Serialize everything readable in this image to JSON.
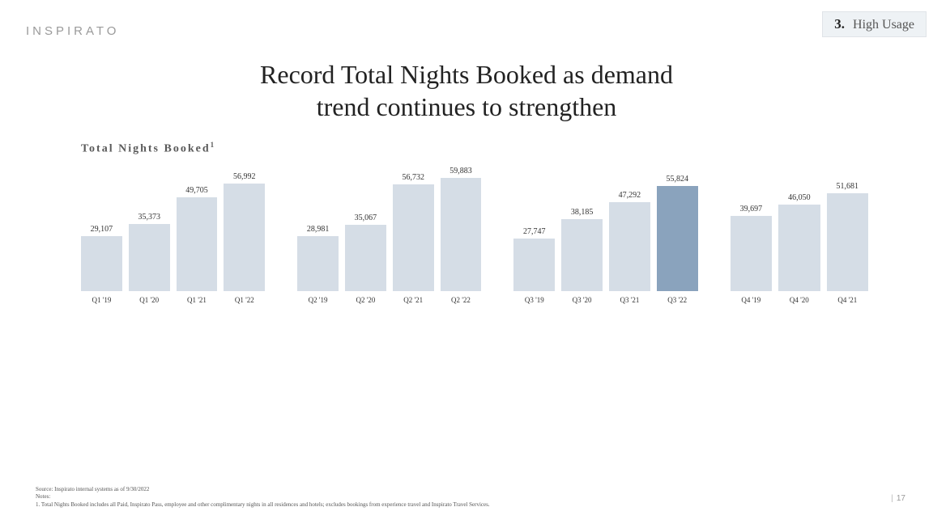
{
  "logo": "INSPIRATO",
  "tag": {
    "num": "3.",
    "label": "High Usage"
  },
  "title_line1": "Record Total Nights Booked as demand",
  "title_line2": "trend continues to strengthen",
  "chart_title_main": "Total Nights Booked",
  "chart_title_sup": "1",
  "chart": {
    "ymax": 60000,
    "bar_color": "#d5dde6",
    "highlight_color": "#8aa3bd",
    "groups": [
      {
        "bars": [
          {
            "label": "Q1 '19",
            "value": 29107,
            "display": "29,107",
            "hl": false
          },
          {
            "label": "Q1 '20",
            "value": 35373,
            "display": "35,373",
            "hl": false
          },
          {
            "label": "Q1 '21",
            "value": 49705,
            "display": "49,705",
            "hl": false
          },
          {
            "label": "Q1 '22",
            "value": 56992,
            "display": "56,992",
            "hl": false
          }
        ]
      },
      {
        "bars": [
          {
            "label": "Q2 '19",
            "value": 28981,
            "display": "28,981",
            "hl": false
          },
          {
            "label": "Q2 '20",
            "value": 35067,
            "display": "35,067",
            "hl": false
          },
          {
            "label": "Q2 '21",
            "value": 56732,
            "display": "56,732",
            "hl": false
          },
          {
            "label": "Q2 '22",
            "value": 59883,
            "display": "59,883",
            "hl": false
          }
        ]
      },
      {
        "bars": [
          {
            "label": "Q3 '19",
            "value": 27747,
            "display": "27,747",
            "hl": false
          },
          {
            "label": "Q3 '20",
            "value": 38185,
            "display": "38,185",
            "hl": false
          },
          {
            "label": "Q3 '21",
            "value": 47292,
            "display": "47,292",
            "hl": false
          },
          {
            "label": "Q3 '22",
            "value": 55824,
            "display": "55,824",
            "hl": true
          }
        ]
      },
      {
        "bars": [
          {
            "label": "Q4 '19",
            "value": 39697,
            "display": "39,697",
            "hl": false
          },
          {
            "label": "Q4 '20",
            "value": 46050,
            "display": "46,050",
            "hl": false
          },
          {
            "label": "Q4 '21",
            "value": 51681,
            "display": "51,681",
            "hl": false
          }
        ]
      }
    ]
  },
  "footer": {
    "source": "Source:   Inspirato internal systems as of 9/30/2022",
    "notes_label": "Notes:",
    "note1": "1.     Total Nights Booked includes all Paid, Inspirato Pass, employee and other complimentary nights in all residences and hotels; excludes bookings from experience travel and Inspirato Travel Services."
  },
  "page_num": "17"
}
